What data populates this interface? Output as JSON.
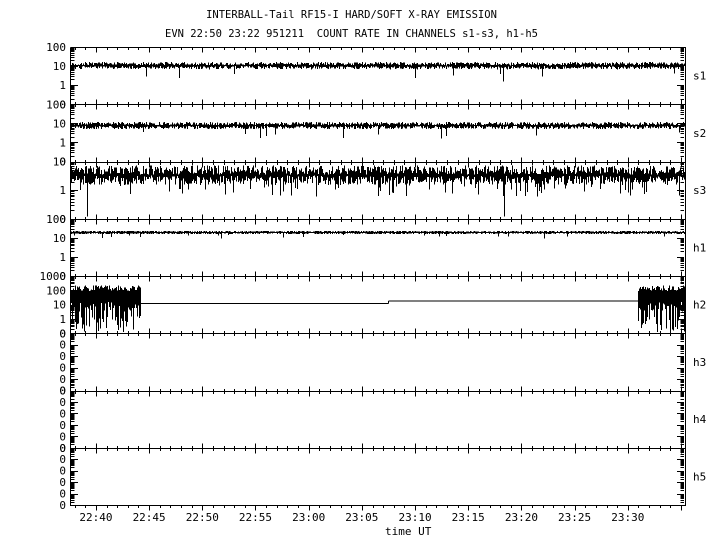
{
  "colors": {
    "foreground": "#000000",
    "background": "#ffffff"
  },
  "chart_data": {
    "type": "line",
    "title": "INTERBALL-Tail RF15-I HARD/SOFT X-RAY EMISSION",
    "subtitle": "EVN 22:50 23:22 951211  COUNT RATE IN CHANNELS s1-s3, h1-h5",
    "xlabel": "time UT",
    "y_scale": "log",
    "grid": false,
    "legend": "none",
    "x_tick_labels": [
      "22:40",
      "22:45",
      "22:50",
      "22:55",
      "23:00",
      "23:05",
      "23:10",
      "23:15",
      "23:20",
      "23:25",
      "23:30"
    ],
    "x_tick_minutes": [
      0,
      5,
      10,
      15,
      20,
      25,
      30,
      35,
      40,
      45,
      50
    ],
    "x_minor_step_minutes": 1,
    "x_range_minutes": [
      -2.44,
      55.38
    ],
    "panels": [
      {
        "label": "s1",
        "ymax": 100,
        "decades": 3,
        "y_range": [
          0.1,
          100
        ],
        "y_tick_labels": [
          "100",
          "10",
          "1",
          "0"
        ],
        "series": {
          "kind": "band",
          "level": 11,
          "jitter": 0.17,
          "spike_prob": 0.018,
          "spike_range": [
            2.2,
            5
          ],
          "events": [
            {
              "t": 38.3,
              "v": 1.6
            }
          ],
          "seed": 101
        }
      },
      {
        "label": "s2",
        "ymax": 100,
        "decades": 3,
        "y_range": [
          0.1,
          100
        ],
        "y_tick_labels": [
          "100",
          "10",
          "1",
          "0"
        ],
        "series": {
          "kind": "band",
          "level": 8,
          "jitter": 0.17,
          "spike_prob": 0.02,
          "spike_range": [
            1.3,
            3.5
          ],
          "events": [],
          "seed": 202
        }
      },
      {
        "label": "s3",
        "ymax": 10,
        "decades": 2,
        "y_range": [
          0.1,
          10
        ],
        "y_tick_labels": [
          "10",
          "1",
          "0"
        ],
        "series": {
          "kind": "band",
          "level": 3.5,
          "jitter": 0.32,
          "spike_prob": 0.12,
          "spike_range": [
            0.6,
            1.6
          ],
          "events": [
            {
              "t": -0.85,
              "v": 0.12
            },
            {
              "t": 38.4,
              "v": 0.12
            }
          ],
          "seed": 303
        }
      },
      {
        "label": "h1",
        "ymax": 100,
        "decades": 3,
        "y_range": [
          0.1,
          100
        ],
        "y_tick_labels": [
          "100",
          "10",
          "1",
          "0"
        ],
        "series": {
          "kind": "band",
          "level": 20,
          "jitter": 0.07,
          "spike_prob": 0.02,
          "spike_range": [
            9,
            14
          ],
          "events": [],
          "seed": 404
        }
      },
      {
        "label": "h2",
        "ymax": 1000,
        "decades": 4,
        "y_range": [
          0.1,
          1000
        ],
        "y_tick_labels": [
          "1000",
          "100",
          "10",
          "1",
          "0"
        ],
        "series": {
          "kind": "segments",
          "seed": 505,
          "segments": [
            {
              "t0": -2.44,
              "t1": 4.1,
              "kind": "burst",
              "hi": [
                90,
                230
              ],
              "lo": [
                3,
                16
              ],
              "deep_prob": 0.5,
              "deep": [
                0.12,
                1.6
              ]
            },
            {
              "t0": 4.1,
              "t1": 27.5,
              "kind": "flat",
              "level": 12
            },
            {
              "t0": 27.5,
              "t1": 51.0,
              "kind": "flat",
              "level": 18
            },
            {
              "t0": 51.0,
              "t1": 55.38,
              "kind": "burst",
              "hi": [
                90,
                230
              ],
              "lo": [
                3,
                16
              ],
              "deep_prob": 0.5,
              "deep": [
                0.12,
                1.6
              ]
            }
          ]
        }
      },
      {
        "label": "h3",
        "ymax": 0,
        "decades": 5,
        "y_range": [
          0,
          0
        ],
        "y_tick_labels": [
          "0",
          "0",
          "0",
          "0",
          "0",
          "0"
        ],
        "series": {
          "kind": "none"
        }
      },
      {
        "label": "h4",
        "ymax": 0,
        "decades": 5,
        "y_range": [
          0,
          0
        ],
        "y_tick_labels": [
          "0",
          "0",
          "0",
          "0",
          "0",
          "0"
        ],
        "series": {
          "kind": "none"
        }
      },
      {
        "label": "h5",
        "ymax": 0,
        "decades": 5,
        "y_range": [
          0,
          0
        ],
        "y_tick_labels": [
          "0",
          "0",
          "0",
          "0",
          "0",
          "0"
        ],
        "series": {
          "kind": "none"
        }
      }
    ]
  }
}
